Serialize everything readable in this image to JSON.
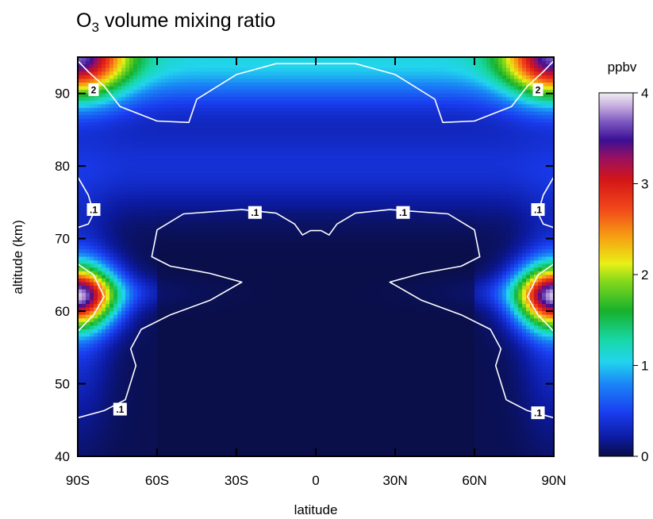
{
  "chart_data": {
    "type": "heatmap",
    "title_main": "O",
    "title_sub": "3",
    "title_rest": " volume mixing ratio",
    "xlabel": "latitude",
    "ylabel": "altitude (km)",
    "xlim": [
      -90,
      90
    ],
    "ylim": [
      40,
      95
    ],
    "x_ticks": [
      {
        "value": -90,
        "label": "90S"
      },
      {
        "value": -60,
        "label": "60S"
      },
      {
        "value": -30,
        "label": "30S"
      },
      {
        "value": 0,
        "label": "0"
      },
      {
        "value": 30,
        "label": "30N"
      },
      {
        "value": 60,
        "label": "60N"
      },
      {
        "value": 90,
        "label": "90N"
      }
    ],
    "y_ticks": [
      {
        "value": 40,
        "label": "40"
      },
      {
        "value": 50,
        "label": "50"
      },
      {
        "value": 60,
        "label": "60"
      },
      {
        "value": 70,
        "label": "70"
      },
      {
        "value": 80,
        "label": "80"
      },
      {
        "value": 90,
        "label": "90"
      }
    ],
    "colorbar": {
      "unit": "ppbv",
      "range": [
        0,
        4
      ],
      "ticks": [
        {
          "value": 0,
          "label": "0"
        },
        {
          "value": 1,
          "label": "1"
        },
        {
          "value": 2,
          "label": "2"
        },
        {
          "value": 3,
          "label": "3"
        },
        {
          "value": 4,
          "label": "4"
        }
      ]
    },
    "contour_labels": [
      {
        "text": "2",
        "lat": -84,
        "alt": 90.5
      },
      {
        "text": "2",
        "lat": 84,
        "alt": 90.5
      },
      {
        "text": ".1",
        "lat": -84,
        "alt": 74
      },
      {
        "text": ".1",
        "lat": -23,
        "alt": 73.6
      },
      {
        "text": ".1",
        "lat": 33,
        "alt": 73.6
      },
      {
        "text": ".1",
        "lat": 84,
        "alt": 74
      },
      {
        "text": ".1",
        "lat": -74,
        "alt": 46.5
      },
      {
        "text": ".1",
        "lat": 84,
        "alt": 46
      }
    ],
    "field_model": {
      "background": 0.03,
      "features": [
        {
          "name": "upper-band",
          "value": 1.05,
          "center_alt": 94,
          "half_width_alt": 6
        },
        {
          "name": "polar-mesopause-NH",
          "lat": 90,
          "alt": 95,
          "peak": 3.2
        },
        {
          "name": "polar-mesopause-SH",
          "lat": -90,
          "alt": 95,
          "peak": 3.2
        },
        {
          "name": "polar-max-SH",
          "lat": -90,
          "alt": 62,
          "peak": 3.2
        },
        {
          "name": "polar-max-NH",
          "lat": 90,
          "alt": 62,
          "peak": 3.2
        }
      ]
    }
  }
}
